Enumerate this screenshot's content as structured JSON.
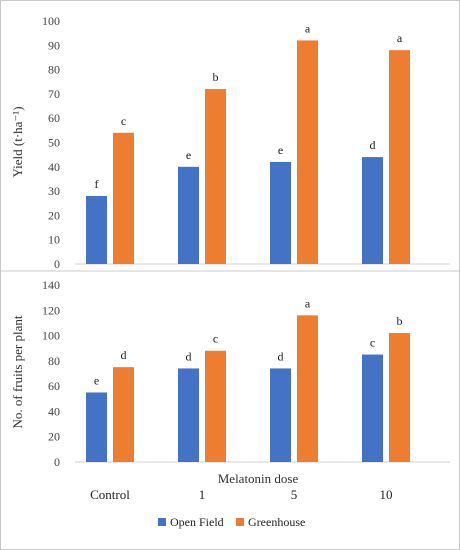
{
  "chart_data": [
    {
      "type": "bar",
      "categories": [
        "Control",
        "1",
        "5",
        "10"
      ],
      "ylabel": "Yield (t·ha⁻¹)",
      "ylim": [
        0,
        100
      ],
      "yticks": [
        0,
        10,
        20,
        30,
        40,
        50,
        60,
        70,
        80,
        90,
        100
      ],
      "grid": false,
      "series": [
        {
          "name": "Open Field",
          "color": "#4472C4",
          "values": [
            28,
            40,
            42,
            44
          ],
          "labels": [
            "f",
            "e",
            "e",
            "d"
          ]
        },
        {
          "name": "Greenhouse",
          "color": "#ED7D31",
          "values": [
            54,
            72,
            92,
            88
          ],
          "labels": [
            "c",
            "b",
            "a",
            "a"
          ]
        }
      ]
    },
    {
      "type": "bar",
      "categories": [
        "Control",
        "1",
        "5",
        "10"
      ],
      "xlabel": "Melatonin dose",
      "ylabel": "No. of fruits per plant",
      "ylim": [
        0,
        140
      ],
      "yticks": [
        0,
        20,
        40,
        60,
        80,
        100,
        120,
        140
      ],
      "grid": false,
      "legend_position": "bottom",
      "series": [
        {
          "name": "Open Field",
          "color": "#4472C4",
          "values": [
            55,
            74,
            74,
            85
          ],
          "labels": [
            "e",
            "d",
            "d",
            "c"
          ]
        },
        {
          "name": "Greenhouse",
          "color": "#ED7D31",
          "values": [
            75,
            88,
            116,
            102
          ],
          "labels": [
            "d",
            "c",
            "a",
            "b"
          ]
        }
      ]
    }
  ]
}
